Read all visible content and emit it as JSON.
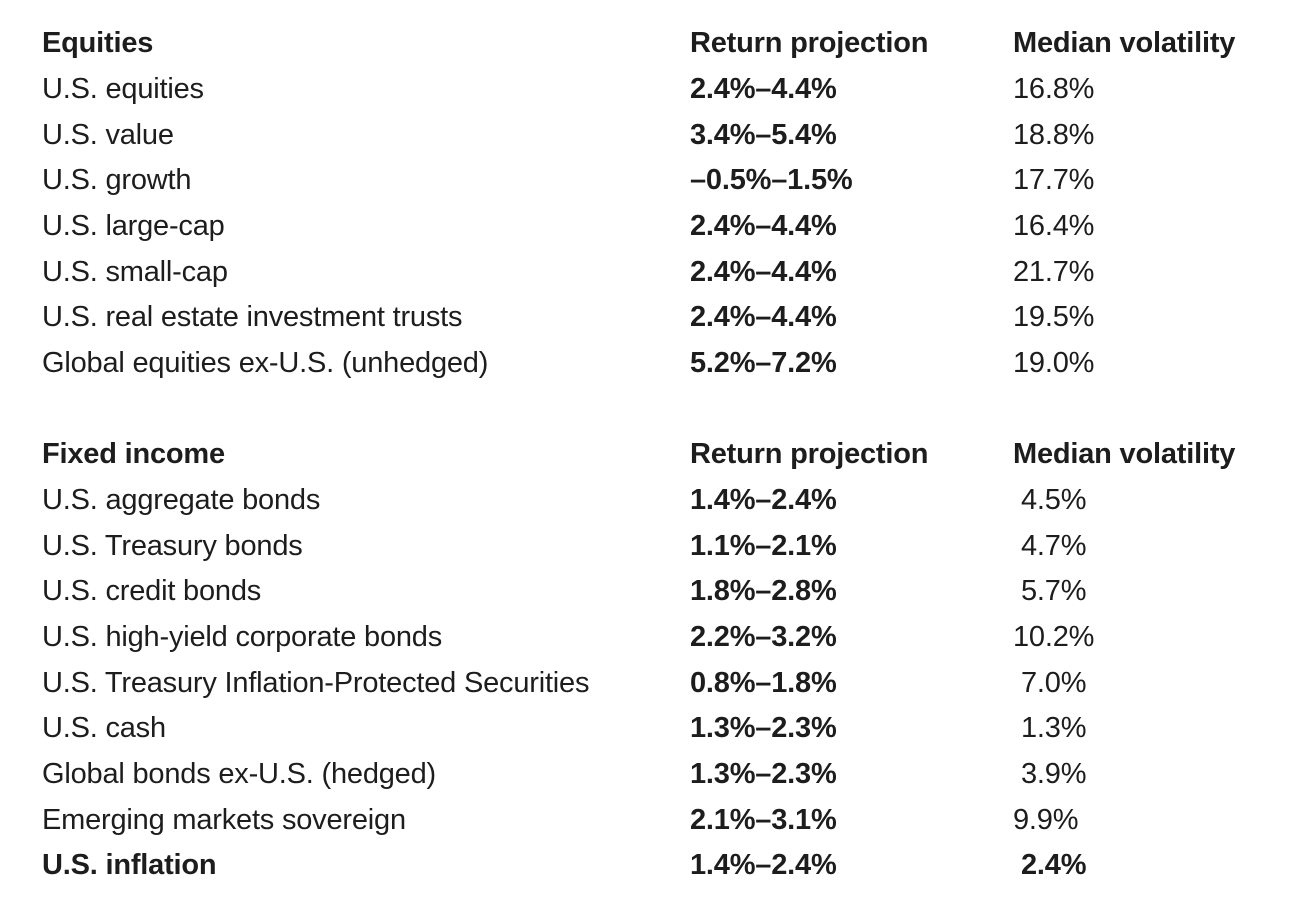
{
  "colors": {
    "text": "#1d1d1d",
    "background": "#ffffff"
  },
  "sections": [
    {
      "title": "Equities",
      "col_return": "Return projection",
      "col_volatility": "Median volatility",
      "rows": [
        {
          "asset": "U.S. equities",
          "return_projection": "2.4%–4.4%",
          "median_volatility": "16.8%"
        },
        {
          "asset": "U.S. value",
          "return_projection": "3.4%–5.4%",
          "median_volatility": "18.8%"
        },
        {
          "asset": "U.S. growth",
          "return_projection": "–0.5%–1.5%",
          "median_volatility": "17.7%"
        },
        {
          "asset": "U.S. large-cap",
          "return_projection": "2.4%–4.4%",
          "median_volatility": "16.4%"
        },
        {
          "asset": "U.S. small-cap",
          "return_projection": "2.4%–4.4%",
          "median_volatility": "21.7%"
        },
        {
          "asset": "U.S. real estate investment trusts",
          "return_projection": "2.4%–4.4%",
          "median_volatility": "19.5%"
        },
        {
          "asset": "Global equities ex-U.S. (unhedged)",
          "return_projection": "5.2%–7.2%",
          "median_volatility": "19.0%"
        }
      ]
    },
    {
      "title": "Fixed income",
      "col_return": "Return projection",
      "col_volatility": "Median volatility",
      "rows": [
        {
          "asset": "U.S. aggregate bonds",
          "return_projection": "1.4%–2.4%",
          "median_volatility": "4.5%"
        },
        {
          "asset": "U.S. Treasury bonds",
          "return_projection": "1.1%–2.1%",
          "median_volatility": "4.7%"
        },
        {
          "asset": "U.S. credit bonds",
          "return_projection": "1.8%–2.8%",
          "median_volatility": "5.7%"
        },
        {
          "asset": "U.S. high-yield corporate bonds",
          "return_projection": "2.2%–3.2%",
          "median_volatility": "10.2%"
        },
        {
          "asset": "U.S. Treasury Inflation-Protected Securities",
          "return_projection": "0.8%–1.8%",
          "median_volatility": "7.0%"
        },
        {
          "asset": "U.S. cash",
          "return_projection": "1.3%–2.3%",
          "median_volatility": "1.3%"
        },
        {
          "asset": "Global bonds ex-U.S. (hedged)",
          "return_projection": "1.3%–2.3%",
          "median_volatility": "3.9%"
        },
        {
          "asset": "Emerging markets sovereign",
          "return_projection": "2.1%–3.1%",
          "median_volatility": "9.9%"
        },
        {
          "asset": "U.S. inflation",
          "return_projection": "1.4%–2.4%",
          "median_volatility": "2.4%"
        }
      ]
    }
  ]
}
